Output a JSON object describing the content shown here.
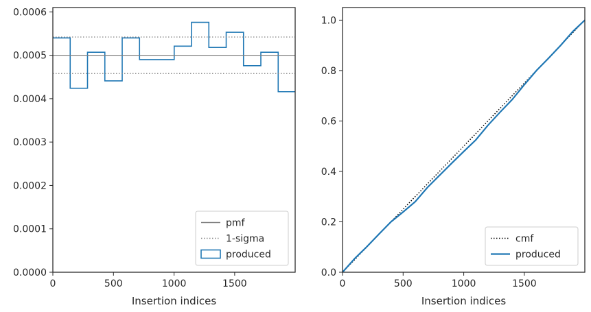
{
  "chart_data": [
    {
      "type": "histogram-step",
      "title": "",
      "xlabel": "Insertion indices",
      "ylabel": "",
      "xlim": [
        0,
        1999
      ],
      "ylim": [
        0,
        0.00061
      ],
      "xticks": [
        0,
        500,
        1000,
        1500
      ],
      "xtick_labels": [
        "0",
        "500",
        "1000",
        "1500"
      ],
      "yticks": [
        0,
        0.0001,
        0.0002,
        0.0003,
        0.0004,
        0.0005,
        0.0006
      ],
      "ytick_labels": [
        "0.0000",
        "0.0001",
        "0.0002",
        "0.0003",
        "0.0004",
        "0.0005",
        "0.0006"
      ],
      "grid": false,
      "legend_position": "lower-right",
      "legend": [
        "pmf",
        "1-sigma",
        "produced"
      ],
      "series": [
        {
          "name": "produced",
          "style": "step",
          "color": "#1f77b4",
          "bin_edges": [
            0,
            143,
            286,
            429,
            572,
            715,
            858,
            1001,
            1144,
            1287,
            1430,
            1573,
            1716,
            1859,
            1999
          ],
          "values": [
            0.00054,
            0.000424,
            0.000507,
            0.000441,
            0.00054,
            0.00049,
            0.00049,
            0.000521,
            0.000576,
            0.000518,
            0.000553,
            0.000476,
            0.000507,
            0.000416
          ]
        },
        {
          "name": "pmf",
          "style": "solid",
          "color": "#808080",
          "y": 0.0005
        },
        {
          "name": "1-sigma",
          "style": "dotted",
          "color": "#808080",
          "y": [
            0.000458,
            0.000542
          ]
        }
      ]
    },
    {
      "type": "line",
      "title": "",
      "xlabel": "Insertion indices",
      "ylabel": "",
      "xlim": [
        0,
        1999
      ],
      "ylim": [
        0,
        1.05
      ],
      "xticks": [
        0,
        500,
        1000,
        1500
      ],
      "xtick_labels": [
        "0",
        "500",
        "1000",
        "1500"
      ],
      "yticks": [
        0,
        0.2,
        0.4,
        0.6,
        0.8,
        1.0
      ],
      "ytick_labels": [
        "0.0",
        "0.2",
        "0.4",
        "0.6",
        "0.8",
        "1.0"
      ],
      "grid": false,
      "legend_position": "lower-right",
      "legend": [
        "cmf",
        "produced"
      ],
      "series": [
        {
          "name": "cmf",
          "style": "dotted",
          "color": "#000000",
          "x": [
            0,
            1999
          ],
          "y": [
            0,
            1.0
          ]
        },
        {
          "name": "produced",
          "style": "solid",
          "color": "#1f77b4",
          "x": [
            0,
            100,
            200,
            300,
            400,
            500,
            600,
            700,
            800,
            900,
            1000,
            1100,
            1200,
            1300,
            1400,
            1500,
            1600,
            1700,
            1800,
            1900,
            1999
          ],
          "y": [
            0,
            0.054,
            0.101,
            0.151,
            0.2,
            0.239,
            0.28,
            0.336,
            0.384,
            0.432,
            0.479,
            0.525,
            0.583,
            0.635,
            0.685,
            0.744,
            0.8,
            0.849,
            0.9,
            0.955,
            1.0
          ]
        }
      ]
    }
  ]
}
